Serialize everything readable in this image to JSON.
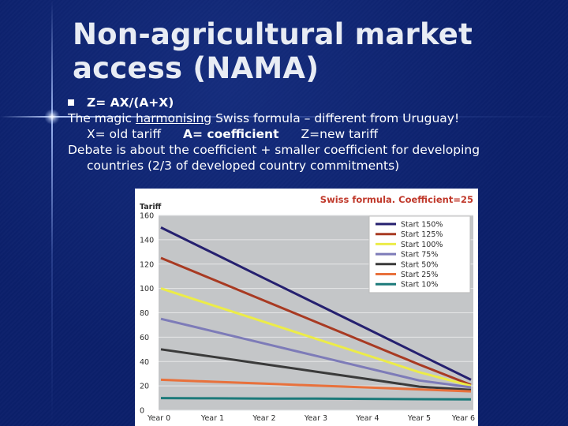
{
  "slide": {
    "title_line1": "Non-agricultural market",
    "title_line2": "access (NAMA)",
    "formula": "Z= AX/(A+X)",
    "line2_prefix": "The magic ",
    "line2_underlined": "harmonising",
    "line2_suffix": " Swiss formula – different from Uruguay!",
    "def_x": "X= old tariff",
    "def_a": "A= coefficient",
    "def_z": "Z=new tariff",
    "line4": "Debate is about the coefficient + smaller coefficient for developing",
    "line5": "countries (2/3 of developed country commitments)"
  },
  "chart_data": {
    "type": "line",
    "title": "Swiss formula. Coefficient=25",
    "ylabel": "Tariff",
    "xlabel": "",
    "x": [
      "Year 0",
      "Year 1",
      "Year 2",
      "Year 3",
      "Year 4",
      "Year 5",
      "Year 6"
    ],
    "ylim": [
      0,
      160
    ],
    "yticks": [
      0,
      20,
      40,
      60,
      80,
      100,
      120,
      140,
      160
    ],
    "grid": true,
    "legend_position": "top-right",
    "colors": {
      "plot_bg": "#c4c6c8",
      "grid": "#e6e7e8",
      "title": "#c0392b",
      "axis_text": "#2b2b2b"
    },
    "series": [
      {
        "name": "Start 150%",
        "color": "#25206f",
        "values": [
          150,
          129.2,
          108.3,
          87.5,
          66.7,
          45.8,
          25
        ]
      },
      {
        "name": "Start 125%",
        "color": "#a83a22",
        "values": [
          125,
          107.5,
          90,
          72.5,
          55,
          37.5,
          20.8
        ]
      },
      {
        "name": "Start 100%",
        "color": "#ecec48",
        "values": [
          100,
          86.2,
          72.5,
          58.7,
          45,
          31.2,
          20
        ]
      },
      {
        "name": "Start 75%",
        "color": "#7d7bb8",
        "values": [
          75,
          64.9,
          54.8,
          44.6,
          34.5,
          24.4,
          18.8
        ]
      },
      {
        "name": "Start 50%",
        "color": "#3a3a3a",
        "values": [
          50,
          43.9,
          37.8,
          31.7,
          25.6,
          19.4,
          16.7
        ]
      },
      {
        "name": "Start 25%",
        "color": "#e8713c",
        "values": [
          25,
          23.4,
          21.9,
          20.2,
          18.7,
          17.1,
          15.5
        ]
      },
      {
        "name": "Start 10%",
        "color": "#1c7a7a",
        "values": [
          10,
          9.8,
          9.6,
          9.5,
          9.3,
          9.1,
          8.9
        ]
      }
    ]
  }
}
